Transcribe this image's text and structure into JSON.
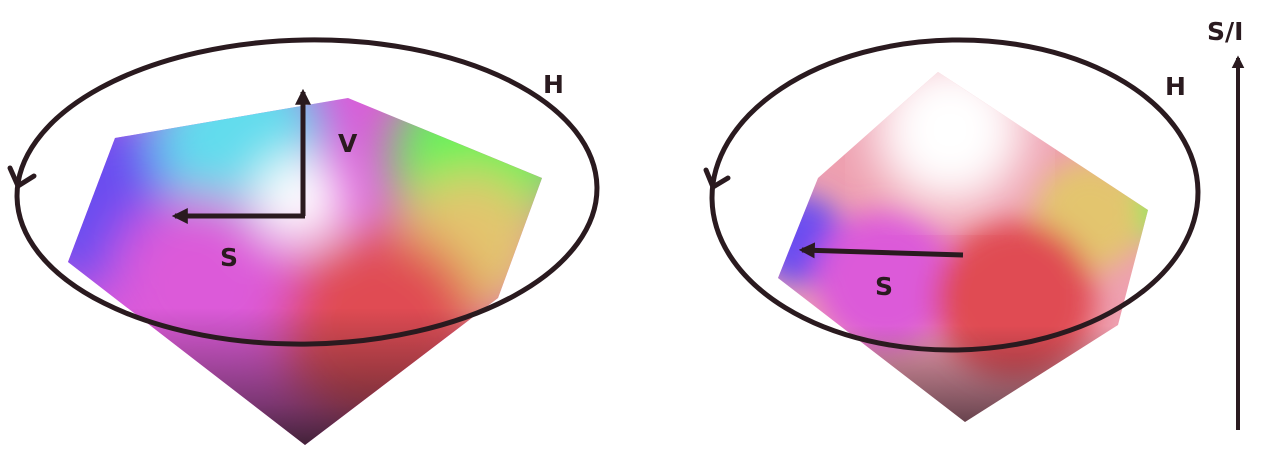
{
  "diagrams": [
    {
      "model": "hexcone",
      "labels": {
        "hue": "H",
        "value": "V",
        "saturation": "S"
      },
      "colors": {
        "blue": "#6a4ef0",
        "cyan": "#62dced",
        "green": "#66f25a",
        "yellow": "#e3c56e",
        "red": "#e04c52",
        "magenta": "#dc5ad9",
        "white": "#ffffff",
        "apex": "#2d1a22"
      }
    },
    {
      "model": "double-hexcone",
      "labels": {
        "hue": "H",
        "saturation": "S"
      },
      "colors": {
        "blue": "#6a4ef0",
        "cyan": "#62dced",
        "green": "#66f25a",
        "yellow": "#e3c56e",
        "red": "#e04c52",
        "magenta": "#dc5ad9",
        "white": "#ffffff",
        "apex": "#2d1a22"
      }
    }
  ],
  "axis": {
    "label": "S/I"
  },
  "ink_color": "#2a1a1f"
}
